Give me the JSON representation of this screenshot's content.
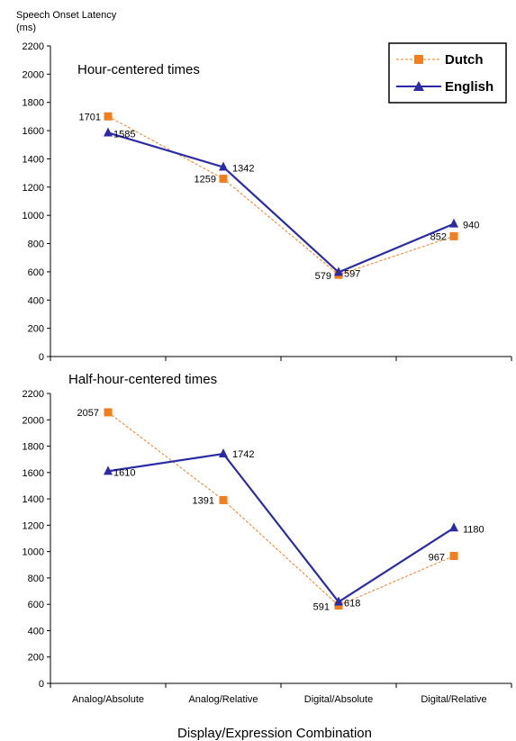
{
  "chart_data": {
    "type": "line",
    "ylabel_line1": "Speech Onset Latency",
    "ylabel_line2": "(ms)",
    "xlabel": "Display/Expression Combination",
    "categories": [
      "Analog/Absolute",
      "Analog/Relative",
      "Digital/Absolute",
      "Digital/Relative"
    ],
    "ylim": [
      0,
      2200
    ],
    "yticks": [
      0,
      200,
      400,
      600,
      800,
      1000,
      1200,
      1400,
      1600,
      1800,
      2000,
      2200
    ],
    "legend": {
      "placement": "top-right",
      "entries": [
        "Dutch",
        "English"
      ]
    },
    "colors": {
      "Dutch": "#f07f1f",
      "English": "#2b2ba6"
    },
    "panels": [
      {
        "title": "Hour-centered times",
        "series": [
          {
            "name": "Dutch",
            "values": [
              1701,
              1259,
              579,
              852
            ]
          },
          {
            "name": "English",
            "values": [
              1585,
              1342,
              597,
              940
            ]
          }
        ]
      },
      {
        "title": "Half-hour-centered times",
        "series": [
          {
            "name": "Dutch",
            "values": [
              2057,
              1391,
              591,
              967
            ]
          },
          {
            "name": "English",
            "values": [
              1610,
              1742,
              618,
              1180
            ]
          }
        ]
      }
    ]
  }
}
